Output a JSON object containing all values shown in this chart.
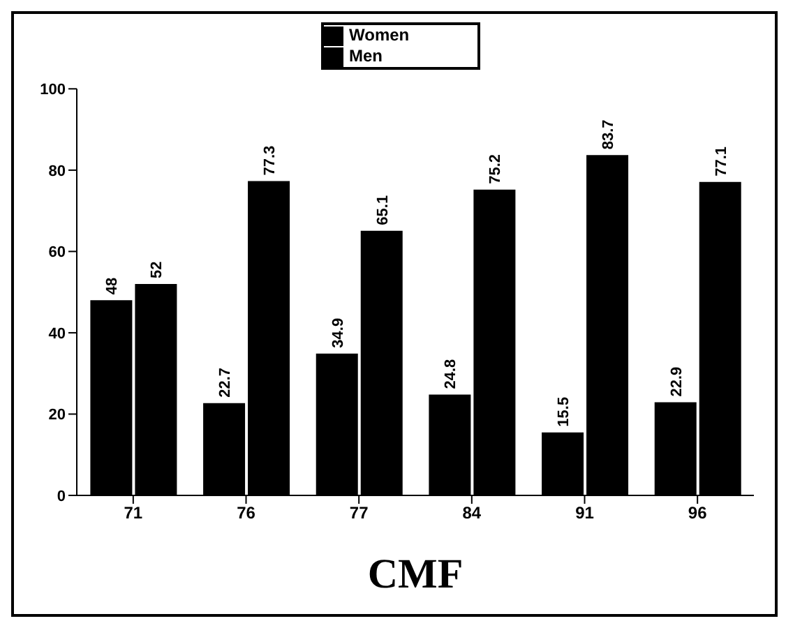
{
  "chart_data": {
    "type": "bar",
    "xlabel": "CMF",
    "categories": [
      "71",
      "76",
      "77",
      "84",
      "91",
      "96"
    ],
    "series": [
      {
        "name": "Women",
        "color": "#000000",
        "values": [
          48,
          22.7,
          34.9,
          24.8,
          15.5,
          22.9
        ]
      },
      {
        "name": "Men",
        "color": "#000000",
        "values": [
          52,
          77.3,
          65.1,
          75.2,
          83.7,
          77.1
        ]
      }
    ],
    "ylim": [
      0,
      100
    ],
    "yticks": [
      0,
      20,
      40,
      60,
      80,
      100
    ],
    "data_labels": true,
    "legend": "top",
    "grid": false
  }
}
